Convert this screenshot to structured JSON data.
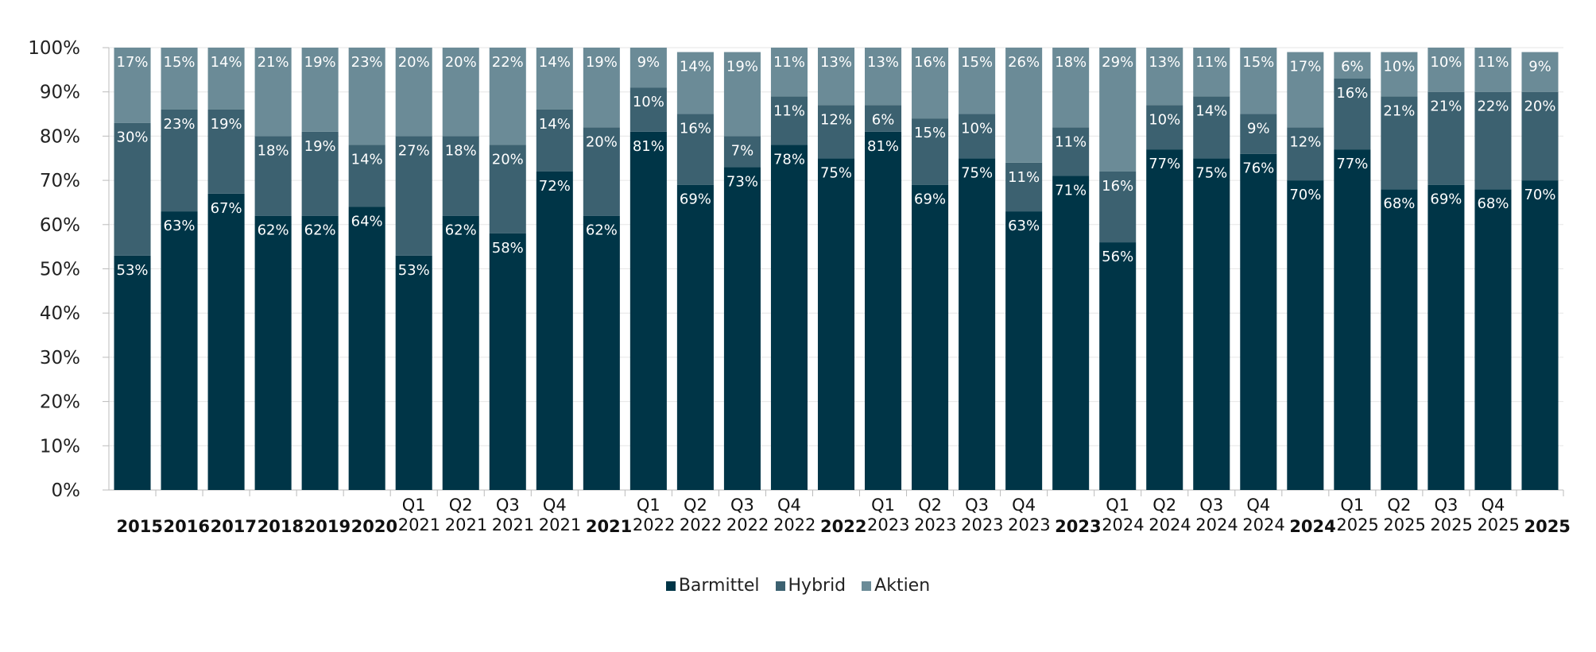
{
  "chart_data": {
    "type": "stacked-bar",
    "categories": [
      "2015",
      "2016",
      "2017",
      "2018",
      "2019",
      "2020",
      "Q1 2021",
      "Q2 2021",
      "Q3 2021",
      "Q4 2021",
      "2021",
      "Q1 2022",
      "Q2 2022",
      "Q3 2022",
      "Q4 2022",
      "2022",
      "Q1 2023",
      "Q2 2023",
      "Q3 2023",
      "Q4 2023",
      "2023",
      "Q1 2024",
      "Q2 2024",
      "Q3 2024",
      "Q4 2024",
      "2024",
      "Q1 2025",
      "Q2 2025",
      "Q3 2025",
      "Q4 2025",
      "2025"
    ],
    "series": [
      {
        "name": "Barmittel",
        "color": "#003547",
        "values": [
          53,
          63,
          67,
          62,
          62,
          64,
          53,
          62,
          58,
          72,
          62,
          81,
          69,
          73,
          78,
          75,
          81,
          69,
          75,
          63,
          71,
          56,
          77,
          75,
          76,
          70,
          77,
          68,
          69,
          68,
          70
        ],
        "value_labels": [
          "53%",
          "63%",
          "67%",
          "62%",
          "62%",
          "64%",
          "53%",
          "62%",
          "58%",
          "72%",
          "62%",
          "81%",
          "69%",
          "73%",
          "78%",
          "75%",
          "81%",
          "69%",
          "75%",
          "63%",
          "71%",
          "56%",
          "77%",
          "75%",
          "76%",
          "70%",
          "77%",
          "68%",
          "69%",
          "68%",
          "70%"
        ]
      },
      {
        "name": "Hybrid",
        "color": "#3c6170",
        "values": [
          30,
          23,
          19,
          18,
          19,
          14,
          27,
          18,
          20,
          14,
          20,
          10,
          16,
          7,
          11,
          12,
          6,
          15,
          10,
          11,
          11,
          16,
          10,
          14,
          9,
          12,
          16,
          21,
          21,
          22,
          20
        ],
        "value_labels": [
          "30%",
          "23%",
          "19%",
          "18%",
          "19%",
          "14%",
          "27%",
          "18%",
          "20%",
          "14%",
          "20%",
          "10%",
          "16%",
          "7%",
          "11%",
          "12%",
          "6%",
          "15%",
          "10%",
          "11%",
          "11%",
          "16%",
          "10%",
          "14%",
          "9%",
          "12%",
          "16%",
          "21%",
          "21%",
          "22%",
          "20%"
        ]
      },
      {
        "name": "Aktien",
        "color": "#6b8b97",
        "values": [
          17,
          15,
          14,
          21,
          19,
          23,
          20,
          20,
          22,
          14,
          19,
          9,
          14,
          19,
          11,
          13,
          13,
          16,
          15,
          26,
          18,
          29,
          13,
          11,
          15,
          17,
          6,
          10,
          10,
          11,
          9
        ],
        "value_labels": [
          "17%",
          "15%",
          "14%",
          "21%",
          "19%",
          "23%",
          "20%",
          "20%",
          "22%",
          "14%",
          "19%",
          "9%",
          "14%",
          "19%",
          "11%",
          "13%",
          "13%",
          "16%",
          "15%",
          "26%",
          "18%",
          "29%",
          "13%",
          "11%",
          "15%",
          "17%",
          "6%",
          "10%",
          "10%",
          "11%",
          "9%"
        ]
      }
    ],
    "ylim": [
      0,
      100
    ],
    "yticks": [
      {
        "value": 0,
        "label": "0%"
      },
      {
        "value": 10,
        "label": "10%"
      },
      {
        "value": 20,
        "label": "20%"
      },
      {
        "value": 30,
        "label": "30%"
      },
      {
        "value": 40,
        "label": "40%"
      },
      {
        "value": 50,
        "label": "50%"
      },
      {
        "value": 60,
        "label": "60%"
      },
      {
        "value": 70,
        "label": "70%"
      },
      {
        "value": 80,
        "label": "80%"
      },
      {
        "value": 90,
        "label": "90%"
      },
      {
        "value": 100,
        "label": "100%"
      }
    ],
    "grid": true,
    "legend": "bottom"
  }
}
